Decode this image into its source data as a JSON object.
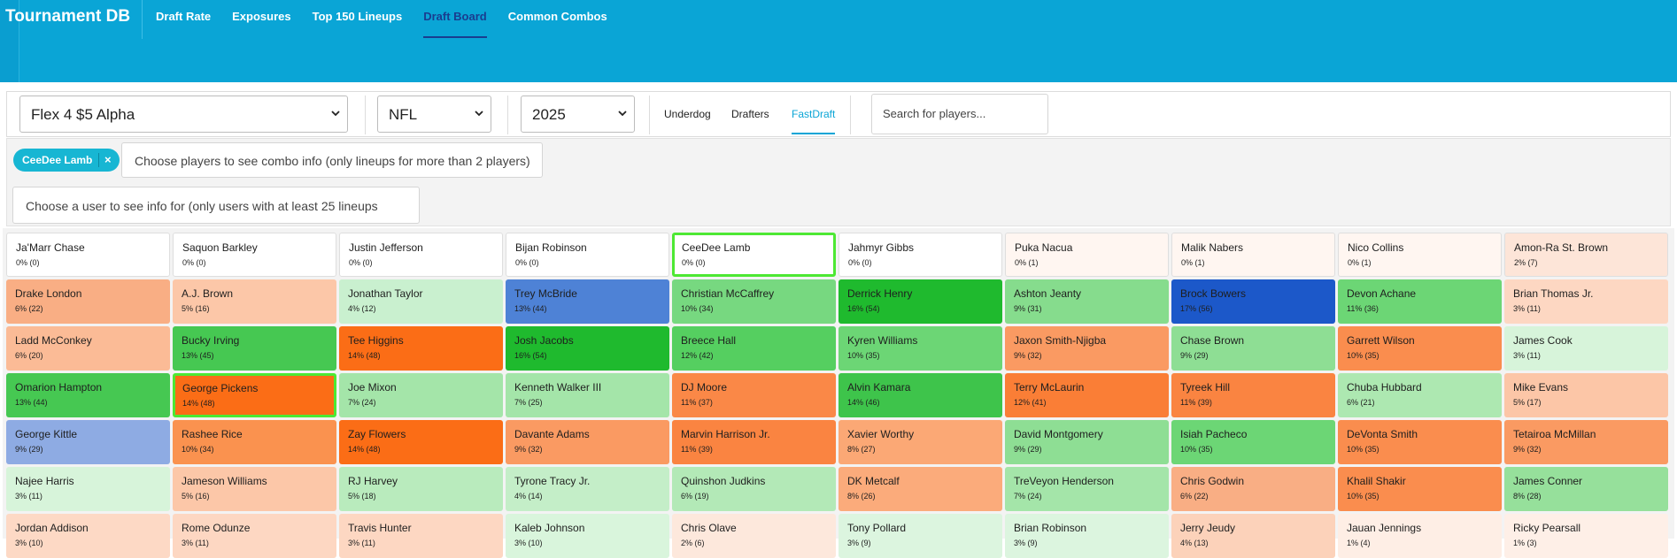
{
  "header": {
    "brand": "Tournament DB",
    "nav": [
      {
        "label": "Draft Rate",
        "active": false
      },
      {
        "label": "Exposures",
        "active": false
      },
      {
        "label": "Top 150 Lineups",
        "active": false
      },
      {
        "label": "Draft Board",
        "active": true
      },
      {
        "label": "Common Combos",
        "active": false
      }
    ]
  },
  "filters": {
    "contest": "Flex 4 $5 Alpha",
    "sport": "NFL",
    "year": "2025",
    "sites": [
      {
        "label": "Underdog",
        "active": false
      },
      {
        "label": "Drafters",
        "active": false
      },
      {
        "label": "FastDraft",
        "active": true
      }
    ],
    "search_placeholder": "Search for players..."
  },
  "combo": {
    "chip_label": "CeeDee Lamb",
    "chip_remove": "×",
    "combo_placeholder": "Choose players to see combo info (only lineups for more than 2 players)",
    "user_placeholder": "Choose a user to see info for (only users with at least 25 lineups"
  },
  "colors": {
    "header": "#0aa5d6",
    "nav_active": "#1a3d8f",
    "chip": "#17b6d3",
    "selected_border": "#4de833"
  },
  "board": [
    [
      {
        "name": "Ja'Marr Chase",
        "stat": "0% (0)",
        "color": "#ffffff"
      },
      {
        "name": "Saquon Barkley",
        "stat": "0% (0)",
        "color": "#ffffff"
      },
      {
        "name": "Justin Jefferson",
        "stat": "0% (0)",
        "color": "#ffffff"
      },
      {
        "name": "Bijan Robinson",
        "stat": "0% (0)",
        "color": "#ffffff"
      },
      {
        "name": "CeeDee Lamb",
        "stat": "0% (0)",
        "color": "#ffffff",
        "selected": true
      },
      {
        "name": "Jahmyr Gibbs",
        "stat": "0% (0)",
        "color": "#ffffff"
      },
      {
        "name": "Puka Nacua",
        "stat": "0% (1)",
        "color": "#fff6f1"
      },
      {
        "name": "Malik Nabers",
        "stat": "0% (1)",
        "color": "#fff6f1"
      },
      {
        "name": "Nico Collins",
        "stat": "0% (1)",
        "color": "#fff6f1"
      },
      {
        "name": "Amon-Ra St. Brown",
        "stat": "2% (7)",
        "color": "#fde5d8"
      }
    ],
    [
      {
        "name": "Drake London",
        "stat": "6% (22)",
        "color": "#f9ae84"
      },
      {
        "name": "A.J. Brown",
        "stat": "5% (16)",
        "color": "#fcc7a8"
      },
      {
        "name": "Jonathan Taylor",
        "stat": "4% (12)",
        "color": "#c9f0cf"
      },
      {
        "name": "Trey McBride",
        "stat": "13% (44)",
        "color": "#4e82d6"
      },
      {
        "name": "Christian McCaffrey",
        "stat": "10% (34)",
        "color": "#77d880"
      },
      {
        "name": "Derrick Henry",
        "stat": "16% (54)",
        "color": "#1fba2e"
      },
      {
        "name": "Ashton Jeanty",
        "stat": "9% (31)",
        "color": "#86dc8d"
      },
      {
        "name": "Brock Bowers",
        "stat": "17% (56)",
        "color": "#1c58c9"
      },
      {
        "name": "Devon Achane",
        "stat": "11% (36)",
        "color": "#6cd675"
      },
      {
        "name": "Brian Thomas Jr.",
        "stat": "3% (11)",
        "color": "#fdd7c2"
      }
    ],
    [
      {
        "name": "Ladd McConkey",
        "stat": "6% (20)",
        "color": "#fbbb96"
      },
      {
        "name": "Bucky Irving",
        "stat": "13% (45)",
        "color": "#46c852"
      },
      {
        "name": "Tee Higgins",
        "stat": "14% (48)",
        "color": "#fb6d16"
      },
      {
        "name": "Josh Jacobs",
        "stat": "16% (54)",
        "color": "#1fba2e"
      },
      {
        "name": "Breece Hall",
        "stat": "12% (42)",
        "color": "#55cf60"
      },
      {
        "name": "Kyren Williams",
        "stat": "10% (35)",
        "color": "#6cd675"
      },
      {
        "name": "Jaxon Smith-Njigba",
        "stat": "9% (32)",
        "color": "#fa9a62"
      },
      {
        "name": "Chase Brown",
        "stat": "9% (29)",
        "color": "#8ede94"
      },
      {
        "name": "Garrett Wilson",
        "stat": "10% (35)",
        "color": "#fa8d4e"
      },
      {
        "name": "James Cook",
        "stat": "3% (11)",
        "color": "#d7f4da"
      }
    ],
    [
      {
        "name": "Omarion Hampton",
        "stat": "13% (44)",
        "color": "#46c852"
      },
      {
        "name": "George Pickens",
        "stat": "14% (48)",
        "color": "#fb6d16",
        "selected": true
      },
      {
        "name": "Joe Mixon",
        "stat": "7% (24)",
        "color": "#a4e5a9"
      },
      {
        "name": "Kenneth Walker III",
        "stat": "7% (25)",
        "color": "#a4e5a9"
      },
      {
        "name": "DJ Moore",
        "stat": "11% (37)",
        "color": "#fa8847"
      },
      {
        "name": "Alvin Kamara",
        "stat": "14% (46)",
        "color": "#3ec44b"
      },
      {
        "name": "Terry McLaurin",
        "stat": "12% (41)",
        "color": "#fa7e36"
      },
      {
        "name": "Tyreek Hill",
        "stat": "11% (39)",
        "color": "#fa8441"
      },
      {
        "name": "Chuba Hubbard",
        "stat": "6% (21)",
        "color": "#ade8b1"
      },
      {
        "name": "Mike Evans",
        "stat": "5% (17)",
        "color": "#fcc6a7"
      }
    ],
    [
      {
        "name": "George Kittle",
        "stat": "9% (29)",
        "color": "#8eabe3"
      },
      {
        "name": "Rashee Rice",
        "stat": "10% (34)",
        "color": "#fa924f"
      },
      {
        "name": "Zay Flowers",
        "stat": "14% (48)",
        "color": "#fb6d16"
      },
      {
        "name": "Davante Adams",
        "stat": "9% (32)",
        "color": "#fa9a62"
      },
      {
        "name": "Marvin Harrison Jr.",
        "stat": "11% (39)",
        "color": "#fa8441"
      },
      {
        "name": "Xavier Worthy",
        "stat": "8% (27)",
        "color": "#fba875"
      },
      {
        "name": "David Montgomery",
        "stat": "9% (29)",
        "color": "#8ede94"
      },
      {
        "name": "Isiah Pacheco",
        "stat": "10% (35)",
        "color": "#6cd675"
      },
      {
        "name": "DeVonta Smith",
        "stat": "10% (35)",
        "color": "#fa8d4e"
      },
      {
        "name": "Tetairoa McMillan",
        "stat": "9% (32)",
        "color": "#fa9a62"
      }
    ],
    [
      {
        "name": "Najee Harris",
        "stat": "3% (11)",
        "color": "#d7f4da"
      },
      {
        "name": "Jameson Williams",
        "stat": "5% (16)",
        "color": "#fcc7a8"
      },
      {
        "name": "RJ Harvey",
        "stat": "5% (18)",
        "color": "#b9ebbd"
      },
      {
        "name": "Tyrone Tracy Jr.",
        "stat": "4% (14)",
        "color": "#c4eec8"
      },
      {
        "name": "Quinshon Judkins",
        "stat": "6% (19)",
        "color": "#b3e9b7"
      },
      {
        "name": "DK Metcalf",
        "stat": "8% (26)",
        "color": "#fbab7b"
      },
      {
        "name": "TreVeyon Henderson",
        "stat": "7% (24)",
        "color": "#a4e5a9"
      },
      {
        "name": "Chris Godwin",
        "stat": "6% (22)",
        "color": "#f9ae84"
      },
      {
        "name": "Khalil Shakir",
        "stat": "10% (35)",
        "color": "#fa8d4e"
      },
      {
        "name": "James Conner",
        "stat": "8% (28)",
        "color": "#96e09b"
      }
    ],
    [
      {
        "name": "Jordan Addison",
        "stat": "3% (10)",
        "color": "#fdd9c5"
      },
      {
        "name": "Rome Odunze",
        "stat": "3% (11)",
        "color": "#fdd7c2"
      },
      {
        "name": "Travis Hunter",
        "stat": "3% (11)",
        "color": "#fdd7c2"
      },
      {
        "name": "Kaleb Johnson",
        "stat": "3% (10)",
        "color": "#d9f5dc"
      },
      {
        "name": "Chris Olave",
        "stat": "2% (6)",
        "color": "#fde8dc"
      },
      {
        "name": "Tony Pollard",
        "stat": "3% (9)",
        "color": "#dcf5df"
      },
      {
        "name": "Brian Robinson",
        "stat": "3% (9)",
        "color": "#dcf5df"
      },
      {
        "name": "Jerry Jeudy",
        "stat": "4% (13)",
        "color": "#fcd2ba"
      },
      {
        "name": "Jauan Jennings",
        "stat": "1% (4)",
        "color": "#feeee5"
      },
      {
        "name": "Ricky Pearsall",
        "stat": "1% (3)",
        "color": "#feefe7"
      }
    ]
  ]
}
